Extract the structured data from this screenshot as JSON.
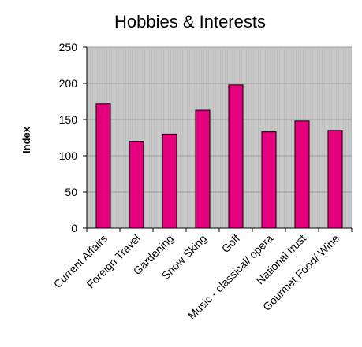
{
  "chart_data": {
    "type": "bar",
    "title": "Hobbies & Interests",
    "xlabel": "",
    "ylabel": "Index",
    "categories": [
      "Current Affairs",
      "Foreign Travel",
      "Gardening",
      "Snow Sking",
      "Golf",
      "Music - classical/ opera",
      "National trust",
      "Gourmet Food/ Wine"
    ],
    "values": [
      172,
      120,
      130,
      163,
      198,
      133,
      148,
      135
    ],
    "ylim": [
      0,
      250
    ],
    "yticks": [
      0,
      50,
      100,
      150,
      200,
      250
    ],
    "grid": true,
    "colors": {
      "bar": "#e6007e",
      "plot_background": "#c0c0c0",
      "grid": "#9c9c9c"
    }
  }
}
